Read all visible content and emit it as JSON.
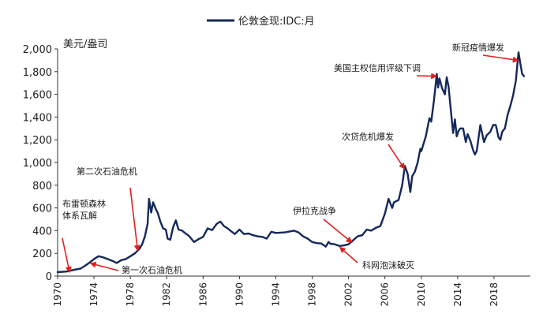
{
  "chart_data": {
    "type": "line",
    "series": [
      {
        "name": "伦敦金现:IDC:月",
        "color": "#14285a",
        "points": [
          [
            1970.0,
            35
          ],
          [
            1971.0,
            40
          ],
          [
            1972.0,
            58
          ],
          [
            1972.5,
            65
          ],
          [
            1973.0,
            90
          ],
          [
            1973.5,
            118
          ],
          [
            1974.0,
            150
          ],
          [
            1974.5,
            175
          ],
          [
            1975.0,
            165
          ],
          [
            1975.5,
            150
          ],
          [
            1976.0,
            135
          ],
          [
            1976.5,
            115
          ],
          [
            1977.0,
            140
          ],
          [
            1977.5,
            150
          ],
          [
            1978.0,
            175
          ],
          [
            1978.5,
            200
          ],
          [
            1979.0,
            240
          ],
          [
            1979.3,
            280
          ],
          [
            1979.6,
            350
          ],
          [
            1979.9,
            460
          ],
          [
            1980.05,
            680
          ],
          [
            1980.3,
            560
          ],
          [
            1980.5,
            650
          ],
          [
            1980.8,
            590
          ],
          [
            1981.0,
            560
          ],
          [
            1981.3,
            480
          ],
          [
            1981.6,
            420
          ],
          [
            1981.9,
            410
          ],
          [
            1982.1,
            330
          ],
          [
            1982.4,
            320
          ],
          [
            1982.7,
            430
          ],
          [
            1983.0,
            490
          ],
          [
            1983.3,
            410
          ],
          [
            1983.7,
            400
          ],
          [
            1984.0,
            380
          ],
          [
            1984.5,
            350
          ],
          [
            1985.0,
            300
          ],
          [
            1985.5,
            325
          ],
          [
            1986.0,
            345
          ],
          [
            1986.5,
            420
          ],
          [
            1987.0,
            405
          ],
          [
            1987.5,
            460
          ],
          [
            1987.9,
            480
          ],
          [
            1988.3,
            440
          ],
          [
            1988.7,
            420
          ],
          [
            1989.0,
            400
          ],
          [
            1989.5,
            370
          ],
          [
            1990.0,
            410
          ],
          [
            1990.5,
            370
          ],
          [
            1991.0,
            375
          ],
          [
            1991.5,
            360
          ],
          [
            1992.0,
            350
          ],
          [
            1992.5,
            345
          ],
          [
            1993.0,
            330
          ],
          [
            1993.5,
            390
          ],
          [
            1994.0,
            380
          ],
          [
            1995.0,
            385
          ],
          [
            1996.0,
            400
          ],
          [
            1996.5,
            385
          ],
          [
            1997.0,
            350
          ],
          [
            1997.5,
            330
          ],
          [
            1998.0,
            300
          ],
          [
            1998.5,
            290
          ],
          [
            1999.0,
            287
          ],
          [
            1999.5,
            260
          ],
          [
            1999.8,
            300
          ],
          [
            2000.0,
            285
          ],
          [
            2000.5,
            280
          ],
          [
            2001.0,
            265
          ],
          [
            2001.5,
            270
          ],
          [
            2002.0,
            280
          ],
          [
            2002.5,
            315
          ],
          [
            2003.0,
            350
          ],
          [
            2003.5,
            360
          ],
          [
            2004.0,
            410
          ],
          [
            2004.5,
            400
          ],
          [
            2005.0,
            425
          ],
          [
            2005.5,
            440
          ],
          [
            2006.0,
            550
          ],
          [
            2006.4,
            680
          ],
          [
            2006.8,
            600
          ],
          [
            2007.0,
            650
          ],
          [
            2007.5,
            670
          ],
          [
            2007.9,
            800
          ],
          [
            2008.2,
            970
          ],
          [
            2008.5,
            900
          ],
          [
            2008.8,
            740
          ],
          [
            2009.0,
            880
          ],
          [
            2009.3,
            920
          ],
          [
            2009.6,
            1000
          ],
          [
            2009.9,
            1120
          ],
          [
            2010.0,
            1100
          ],
          [
            2010.5,
            1230
          ],
          [
            2010.9,
            1390
          ],
          [
            2011.1,
            1360
          ],
          [
            2011.4,
            1550
          ],
          [
            2011.7,
            1780
          ],
          [
            2011.85,
            1660
          ],
          [
            2012.0,
            1740
          ],
          [
            2012.3,
            1650
          ],
          [
            2012.6,
            1600
          ],
          [
            2012.8,
            1750
          ],
          [
            2013.0,
            1670
          ],
          [
            2013.3,
            1420
          ],
          [
            2013.5,
            1260
          ],
          [
            2013.7,
            1380
          ],
          [
            2013.9,
            1230
          ],
          [
            2014.1,
            1280
          ],
          [
            2014.3,
            1300
          ],
          [
            2014.6,
            1300
          ],
          [
            2014.9,
            1180
          ],
          [
            2015.1,
            1250
          ],
          [
            2015.4,
            1190
          ],
          [
            2015.7,
            1110
          ],
          [
            2015.9,
            1070
          ],
          [
            2016.1,
            1100
          ],
          [
            2016.5,
            1330
          ],
          [
            2016.9,
            1180
          ],
          [
            2017.2,
            1240
          ],
          [
            2017.6,
            1270
          ],
          [
            2017.9,
            1330
          ],
          [
            2018.2,
            1330
          ],
          [
            2018.5,
            1220
          ],
          [
            2018.7,
            1200
          ],
          [
            2018.9,
            1270
          ],
          [
            2019.2,
            1300
          ],
          [
            2019.5,
            1420
          ],
          [
            2019.8,
            1500
          ],
          [
            2020.1,
            1590
          ],
          [
            2020.4,
            1720
          ],
          [
            2020.7,
            1970
          ],
          [
            2020.9,
            1870
          ],
          [
            2021.1,
            1780
          ],
          [
            2021.3,
            1760
          ]
        ]
      }
    ],
    "x_range": [
      1970,
      2022
    ],
    "ylim": [
      0,
      2000
    ],
    "ylabel": "美元/盎司",
    "x_ticks": [
      "1970",
      "1974",
      "1978",
      "1982",
      "1986",
      "1990",
      "1994",
      "1998",
      "2002",
      "2006",
      "2010",
      "2014",
      "2018"
    ],
    "y_ticks": [
      "0",
      "200",
      "400",
      "600",
      "800",
      "1,000",
      "1,200",
      "1,400",
      "1,600",
      "1,800",
      "2,000"
    ],
    "legend_position": "top-center",
    "grid": false,
    "annotations": [
      {
        "lines": [
          "布雷顿森林",
          "体系瓦解"
        ],
        "target": [
          1971.3,
          40
        ]
      },
      {
        "lines": [
          "第一次石油危机"
        ],
        "target": [
          1973.7,
          110
        ]
      },
      {
        "lines": [
          "第二次石油危机"
        ],
        "target": [
          1978.8,
          230
        ]
      },
      {
        "lines": [
          "伊拉克战争"
        ],
        "target": [
          2002.3,
          300
        ]
      },
      {
        "lines": [
          "科网泡沫破灭"
        ],
        "target": [
          2001.1,
          250
        ]
      },
      {
        "lines": [
          "次贷危机爆发"
        ],
        "target": [
          2008.1,
          950
        ]
      },
      {
        "lines": [
          "美国主权信用评级下调"
        ],
        "target": [
          2011.6,
          1760
        ]
      },
      {
        "lines": [
          "新冠疫情爆发"
        ],
        "target": [
          2020.6,
          1900
        ]
      }
    ],
    "annotation_color": "#e02020"
  }
}
